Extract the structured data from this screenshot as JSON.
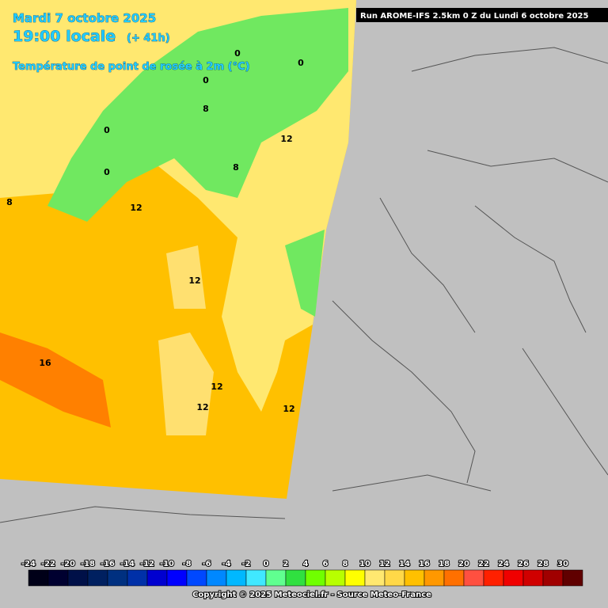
{
  "header": {
    "date": "Mardi 7 octobre 2025",
    "time": "19:00 locale",
    "lead": "(+ 41h)",
    "variable": "Température de point de rosée à 2m (°C)"
  },
  "run": "Run AROME-IFS 2.5km 0 Z du Lundi 6 octobre 2025",
  "map_labels": [
    "0",
    "0",
    "0",
    "0",
    "0",
    "12",
    "12",
    "12",
    "16",
    "12",
    "12",
    "12",
    "8",
    "8",
    "8"
  ],
  "legend": {
    "ticks": [
      -24,
      -22,
      -20,
      -18,
      -16,
      -14,
      -12,
      -10,
      -8,
      -6,
      -4,
      -2,
      0,
      2,
      4,
      6,
      8,
      10,
      12,
      14,
      16,
      18,
      20,
      22,
      24,
      26,
      28,
      30
    ],
    "colors": [
      "#000018",
      "#000030",
      "#001048",
      "#002060",
      "#003080",
      "#0030a8",
      "#0000d0",
      "#0000ff",
      "#0048ff",
      "#0088ff",
      "#00b8ff",
      "#40e8ff",
      "#60ff90",
      "#30e040",
      "#70ff00",
      "#b8ff00",
      "#ffff00",
      "#ffe870",
      "#ffd848",
      "#ffc000",
      "#ff9800",
      "#ff7000",
      "#ff5040",
      "#ff2000",
      "#f00000",
      "#d00000",
      "#a00000",
      "#600000"
    ]
  },
  "copyright": "Copyright © 2025 Meteociel.fr - Source Meteo-France"
}
